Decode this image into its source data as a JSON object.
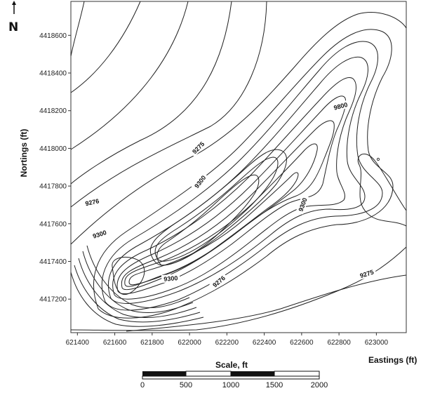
{
  "north_arrow": {
    "label": "N",
    "icon": "north-arrow-icon"
  },
  "axes": {
    "ylabel": "Nortings (ft)",
    "xlabel": "Eastings (ft)",
    "xticks": [
      621400,
      621600,
      621800,
      622000,
      622200,
      622400,
      622600,
      622800,
      623000
    ],
    "yticks": [
      4417200,
      4417400,
      4417600,
      4417800,
      4418000,
      4418200,
      4418400,
      4418600
    ],
    "xlim": [
      621365,
      623160
    ],
    "ylim": [
      4417022,
      4418780
    ]
  },
  "contour_labels": [
    {
      "text": "9275",
      "x": 622050,
      "y": 4418000,
      "angle": -45
    },
    {
      "text": "9800",
      "x": 622810,
      "y": 4418220,
      "angle": -15
    },
    {
      "text": "9276",
      "x": 621480,
      "y": 4417710,
      "angle": -12
    },
    {
      "text": "9300",
      "x": 622060,
      "y": 4417820,
      "angle": -52
    },
    {
      "text": "9300",
      "x": 621520,
      "y": 4417540,
      "angle": -18
    },
    {
      "text": "9300",
      "x": 622610,
      "y": 4417700,
      "angle": -70
    },
    {
      "text": "9300",
      "x": 621900,
      "y": 4417305,
      "angle": -5
    },
    {
      "text": "9276",
      "x": 622160,
      "y": 4417290,
      "angle": -40
    },
    {
      "text": "9275",
      "x": 622950,
      "y": 4417330,
      "angle": -18
    }
  ],
  "scale_bar": {
    "title": "Scale, ft",
    "labels": [
      "0",
      "500",
      "1000",
      "1500",
      "2000"
    ]
  }
}
